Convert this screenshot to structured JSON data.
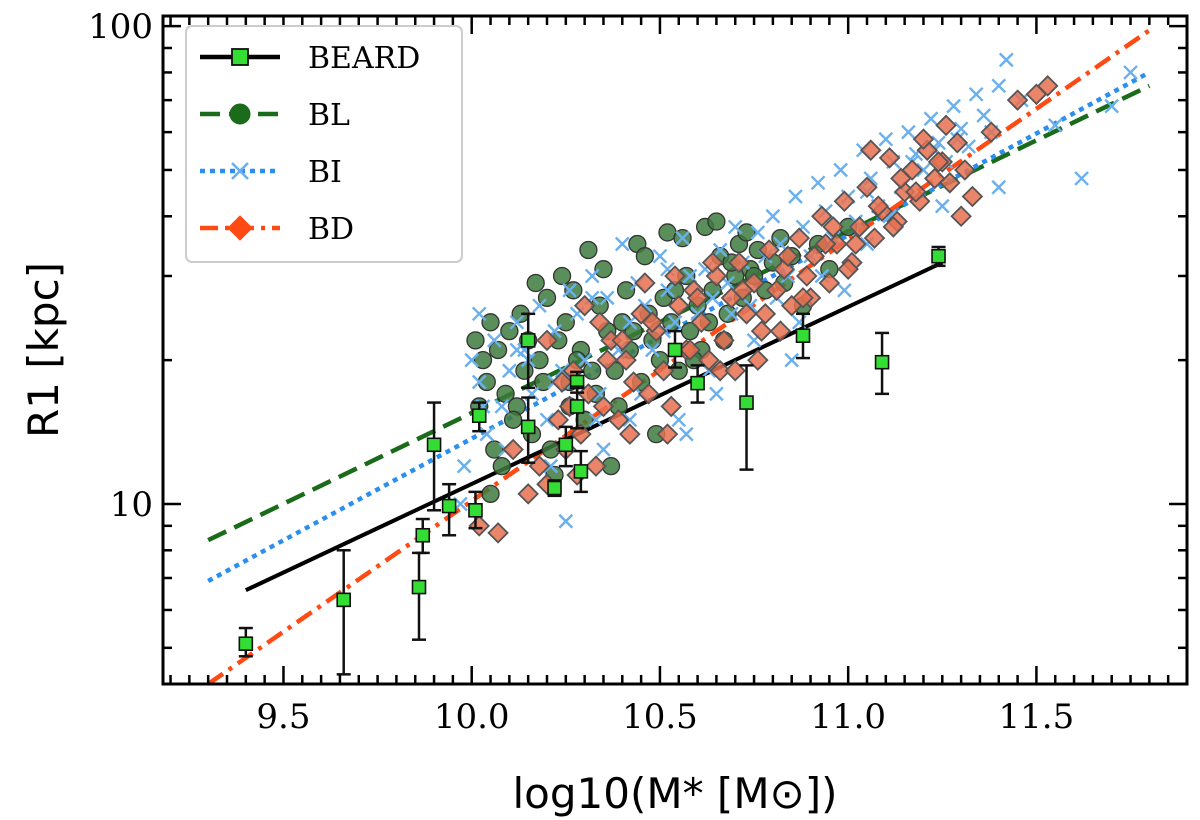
{
  "chart_data": {
    "type": "scatter",
    "xlabel": "log10(M* [M⊙])",
    "ylabel": "R1 [kpc]",
    "xlim": [
      9.18,
      11.9
    ],
    "ylim": [
      4.2,
      105
    ],
    "yscale": "log",
    "xticks": [
      9.5,
      10.0,
      10.5,
      11.0,
      11.5
    ],
    "xtick_labels": [
      "9.5",
      "10.0",
      "10.5",
      "11.0",
      "11.5"
    ],
    "yticks": [
      10,
      100
    ],
    "ytick_labels": [
      "10",
      "100"
    ],
    "legend_position": "top-left",
    "colors": {
      "BEARD": "#000000",
      "BEARD_marker": "#33dd33",
      "BL": "#1a6b1a",
      "BL_marker": "#3d7a3d",
      "BI": "#2b8ff0",
      "BI_marker": "#6ab0ee",
      "BD": "#ff4a14",
      "BD_marker": "#e87050"
    },
    "legend": [
      {
        "label": "BEARD",
        "style": "solid",
        "marker": "square"
      },
      {
        "label": "BL",
        "style": "dashed",
        "marker": "circle"
      },
      {
        "label": "BI",
        "style": "dotted",
        "marker": "x"
      },
      {
        "label": "BD",
        "style": "dashdot",
        "marker": "diamond"
      }
    ],
    "fit_lines": [
      {
        "name": "BEARD",
        "x": [
          9.4,
          11.25
        ],
        "y": [
          6.6,
          32.0
        ]
      },
      {
        "name": "BL",
        "x": [
          9.3,
          11.8
        ],
        "y": [
          8.4,
          75.0
        ]
      },
      {
        "name": "BI",
        "x": [
          9.3,
          11.8
        ],
        "y": [
          6.9,
          80.0
        ]
      },
      {
        "name": "BD",
        "x": [
          9.3,
          11.8
        ],
        "y": [
          4.2,
          98.0
        ]
      }
    ],
    "series": [
      {
        "name": "BEARD",
        "x": [
          9.4,
          9.66,
          9.86,
          9.87,
          9.9,
          9.94,
          10.01,
          10.02,
          10.15,
          10.15,
          10.22,
          10.25,
          10.28,
          10.28,
          10.29,
          10.54,
          10.6,
          10.73,
          10.88,
          11.09,
          11.24
        ],
        "y": [
          5.1,
          6.3,
          6.7,
          8.6,
          13.3,
          9.9,
          9.7,
          15.3,
          22.0,
          14.5,
          10.8,
          13.3,
          18.0,
          16.0,
          11.7,
          21.0,
          17.9,
          16.3,
          22.5,
          19.8,
          33.0
        ],
        "ylow": [
          4.8,
          4.4,
          5.2,
          7.9,
          9.7,
          8.6,
          8.9,
          14.2,
          17.5,
          12.2,
          10.4,
          12.0,
          17.1,
          14.4,
          10.6,
          19.3,
          16.3,
          11.8,
          20.2,
          17.0,
          31.5
        ],
        "yhigh": [
          5.5,
          8.0,
          7.9,
          9.3,
          16.3,
          11.0,
          10.6,
          16.3,
          25.0,
          16.7,
          11.2,
          14.5,
          18.9,
          17.6,
          12.9,
          23.0,
          19.5,
          19.5,
          25.0,
          22.8,
          34.5
        ]
      },
      {
        "name": "BL",
        "x": [
          10.01,
          10.03,
          10.05,
          10.04,
          10.07,
          10.09,
          10.1,
          10.08,
          10.12,
          10.14,
          10.13,
          10.16,
          10.18,
          10.17,
          10.2,
          10.21,
          10.19,
          10.23,
          10.24,
          10.26,
          10.25,
          10.27,
          10.29,
          10.3,
          10.31,
          10.28,
          10.33,
          10.34,
          10.36,
          10.35,
          10.38,
          10.39,
          10.4,
          10.42,
          10.41,
          10.44,
          10.45,
          10.47,
          10.46,
          10.48,
          10.5,
          10.52,
          10.51,
          10.53,
          10.55,
          10.57,
          10.56,
          10.58,
          10.6,
          10.62,
          10.61,
          10.64,
          10.66,
          10.65,
          10.68,
          10.7,
          10.72,
          10.71,
          10.74,
          10.76,
          10.78,
          10.8,
          10.82,
          10.85,
          10.88,
          10.92,
          10.95,
          11.0,
          10.05,
          10.11,
          10.22,
          10.32,
          10.43,
          10.54,
          10.63,
          10.69,
          10.75,
          10.02,
          10.06,
          10.15,
          10.26,
          10.37,
          10.49,
          10.59,
          10.67,
          10.73,
          10.83
        ],
        "y": [
          22,
          20,
          24,
          18,
          21,
          17,
          23,
          12,
          16,
          19,
          25,
          14,
          20,
          29,
          27,
          13,
          18,
          22,
          30,
          16,
          24,
          28,
          21,
          15,
          34,
          20,
          17,
          26,
          23,
          31,
          19,
          16,
          24,
          21,
          28,
          35,
          18,
          25,
          33,
          22,
          20,
          37,
          27,
          24,
          19,
          30,
          36,
          23,
          26,
          38,
          21,
          28,
          33,
          39,
          25,
          30,
          27,
          35,
          31,
          34,
          28,
          32,
          36,
          33,
          26,
          35,
          31,
          38,
          10.5,
          15,
          11.5,
          19,
          23,
          28,
          24,
          32,
          30,
          16,
          13,
          22,
          18,
          12,
          14,
          20,
          22,
          37,
          29
        ]
      },
      {
        "name": "BI",
        "x": [
          9.98,
          10.0,
          10.02,
          10.04,
          10.06,
          10.08,
          10.1,
          10.12,
          10.14,
          10.16,
          10.18,
          10.2,
          10.22,
          10.24,
          10.26,
          10.28,
          10.3,
          10.32,
          10.34,
          10.36,
          10.38,
          10.4,
          10.42,
          10.44,
          10.46,
          10.48,
          10.5,
          10.52,
          10.54,
          10.56,
          10.58,
          10.6,
          10.62,
          10.64,
          10.66,
          10.68,
          10.7,
          10.72,
          10.74,
          10.76,
          10.78,
          10.8,
          10.82,
          10.84,
          10.86,
          10.88,
          10.9,
          10.92,
          10.94,
          10.96,
          10.98,
          11.0,
          11.02,
          11.04,
          11.06,
          11.08,
          11.1,
          11.12,
          11.14,
          11.16,
          11.18,
          11.2,
          11.22,
          11.24,
          11.26,
          11.28,
          11.3,
          11.32,
          11.34,
          11.36,
          11.38,
          11.4,
          11.42,
          11.46,
          11.55,
          11.62,
          11.7,
          11.75,
          10.03,
          10.09,
          10.15,
          10.21,
          10.27,
          10.33,
          10.39,
          10.45,
          10.51,
          10.57,
          10.63,
          10.69,
          10.75,
          10.81,
          10.87,
          10.93,
          10.99,
          11.05,
          11.11,
          11.17,
          11.23,
          11.29,
          9.97,
          10.25,
          10.35,
          10.55,
          10.65,
          10.85,
          11.05,
          11.25,
          11.4,
          10.02,
          10.12,
          10.22,
          10.32,
          10.42,
          10.52
        ],
        "y": [
          12,
          20,
          18,
          14,
          22,
          16,
          19,
          24,
          21,
          17,
          26,
          15,
          23,
          19,
          28,
          25,
          20,
          30,
          17,
          27,
          22,
          35,
          24,
          29,
          26,
          21,
          33,
          28,
          24,
          36,
          30,
          25,
          31,
          27,
          34,
          29,
          38,
          32,
          26,
          37,
          33,
          40,
          35,
          30,
          44,
          38,
          33,
          47,
          41,
          36,
          50,
          44,
          39,
          55,
          48,
          42,
          58,
          52,
          46,
          60,
          54,
          50,
          64,
          57,
          52,
          68,
          61,
          56,
          72,
          65,
          60,
          75,
          85,
          70,
          62,
          48,
          68,
          80,
          16,
          13,
          20,
          12,
          18,
          15,
          21,
          17,
          23,
          14,
          19,
          25,
          22,
          27,
          24,
          30,
          28,
          45,
          40,
          52,
          55,
          58,
          10,
          9.2,
          13,
          15,
          17,
          20,
          35,
          42,
          46,
          25,
          21,
          18,
          27,
          15,
          31
        ]
      },
      {
        "name": "BD",
        "x": [
          10.02,
          10.07,
          10.11,
          10.15,
          10.18,
          10.2,
          10.23,
          10.25,
          10.27,
          10.29,
          10.31,
          10.33,
          10.35,
          10.37,
          10.39,
          10.41,
          10.43,
          10.45,
          10.47,
          10.49,
          10.51,
          10.53,
          10.55,
          10.57,
          10.59,
          10.61,
          10.63,
          10.65,
          10.67,
          10.69,
          10.71,
          10.73,
          10.75,
          10.77,
          10.79,
          10.81,
          10.83,
          10.85,
          10.87,
          10.89,
          10.91,
          10.93,
          10.95,
          10.97,
          10.99,
          11.01,
          11.03,
          11.05,
          11.07,
          11.09,
          11.11,
          11.13,
          11.15,
          11.17,
          11.19,
          11.21,
          11.23,
          11.25,
          11.27,
          11.29,
          11.31,
          11.33,
          11.38,
          11.45,
          11.5,
          11.53,
          10.2,
          10.24,
          10.3,
          10.36,
          10.42,
          10.48,
          10.54,
          10.6,
          10.66,
          10.72,
          10.78,
          10.84,
          10.9,
          10.96,
          11.02,
          11.08,
          11.14,
          11.2,
          11.26,
          10.28,
          10.34,
          10.46,
          10.58,
          10.7,
          10.82,
          10.94,
          11.06,
          11.18,
          11.3,
          10.26,
          10.4,
          10.52,
          10.64,
          10.76,
          10.88,
          11.0,
          11.12,
          11.24
        ],
        "y": [
          9,
          8.7,
          13,
          10.5,
          12,
          11,
          15,
          13,
          19,
          14,
          17,
          12,
          16,
          22,
          15,
          20,
          18,
          25,
          17,
          23,
          19,
          16,
          26,
          21,
          28,
          24,
          20,
          30,
          22,
          27,
          32,
          25,
          29,
          23,
          34,
          28,
          31,
          26,
          36,
          30,
          33,
          40,
          29,
          35,
          43,
          32,
          38,
          46,
          36,
          41,
          53,
          39,
          45,
          50,
          43,
          55,
          48,
          52,
          47,
          57,
          50,
          44,
          60,
          70,
          72,
          75,
          22,
          18,
          26,
          20,
          14,
          24,
          30,
          27,
          19,
          28,
          25,
          33,
          27,
          38,
          35,
          42,
          48,
          58,
          62,
          11.5,
          24,
          29,
          21,
          19,
          23,
          35,
          55,
          45,
          40,
          16,
          22,
          14,
          32,
          20,
          27,
          31,
          38,
          52
        ]
      }
    ]
  }
}
